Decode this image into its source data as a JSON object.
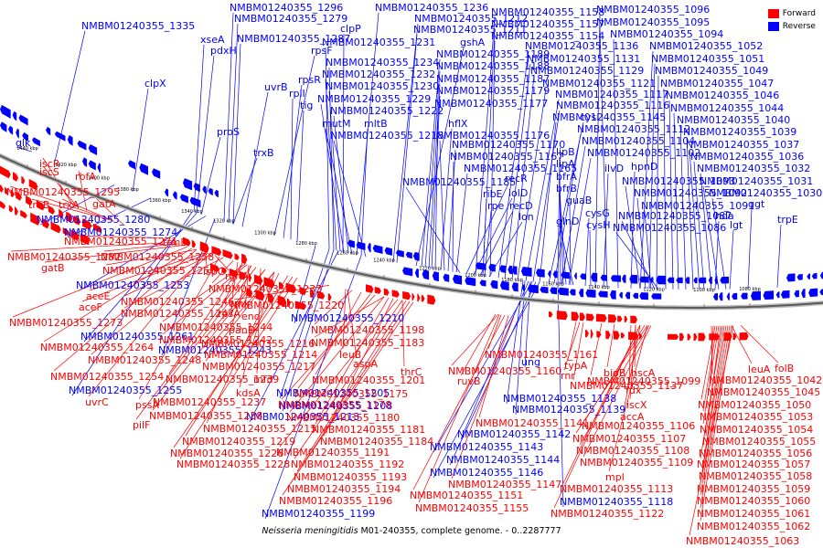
{
  "legend": {
    "forward_label": "Forward",
    "reverse_label": "Reverse",
    "forward_color": "#ff0000",
    "reverse_color": "#0000ff"
  },
  "caption": {
    "organism": "Neisseria meningitidis",
    "rest": " M01-240355, complete genome. - 0..2287777"
  },
  "ticks": [
    "1440 kbp",
    "1420 kbp",
    "1400 kbp",
    "1380 kbp",
    "1360 kbp",
    "1340 kbp",
    "1320 kbp",
    "1300 kbp",
    "1280 kbp",
    "1260 kbp",
    "1240 kbp",
    "1220 kbp",
    "1200 kbp",
    "1180 kbp",
    "1160 kbp",
    "1140 kbp",
    "1120 kbp",
    "1100 kbp",
    "1080 kbp"
  ],
  "reverse_genes": [
    "NMBM01240355_1335",
    "glk",
    "clpX",
    "pdxH",
    "xseA",
    "NMBM01240355_1296",
    "NMBM01240355_1279",
    "NMBM01240355_1287",
    "uvrB",
    "rpsF",
    "rpsR",
    "rplI",
    "tig",
    "proS",
    "trxB",
    "NMBM01240355_1236",
    "clpP",
    "NMBM01240355_1231",
    "NMBM01240355_1234",
    "NMBM01240355_1232",
    "NMBM01240355_1230",
    "NMBM01240355_1229",
    "NMBM01240355_1222",
    "mutM",
    "mltB",
    "NMBM01240355_1218",
    "NMBM01240355_1212",
    "NMBM01240355_1211",
    "gshA",
    "NMBM01240355_1189",
    "NMBM01240355_1188",
    "NMBM01240355_1187",
    "NMBM01240355_1179",
    "NMBM01240355_1177",
    "hflX",
    "NMBM01240355_1176",
    "NMBM01240355_1170",
    "NMBM01240355_1167",
    "NMBM01240355_1165",
    "NMBM01240355_1185",
    "recR",
    "lolD",
    "recD",
    "lon",
    "rpe",
    "ribE",
    "NMBM01240355_1158",
    "NMBM01240355_1157",
    "NMBM01240355_1154",
    "NMBM01240355_1136",
    "NMBM01240355_1131",
    "NMBM01240355_1129",
    "NMBM01240355_1121",
    "NMBM01240355_1117",
    "NMBM01240355_1116",
    "NMBM01240355_1145",
    "cysI",
    "NMBM01240355_1112",
    "NMBM01240355_1104",
    "NMBM01240355_1102",
    "lipB",
    "lipA",
    "bfrA",
    "bfrB",
    "guaB",
    "glnD",
    "cysG",
    "cysH",
    "ilvD",
    "hpnD",
    "NMBM01240355_1096",
    "NMBM01240355_1095",
    "NMBM01240355_1094",
    "NMBM01240355_1052",
    "NMBM01240355_1051",
    "NMBM01240355_1049",
    "NMBM01240355_1047",
    "NMBM01240355_1046",
    "NMBM01240355_1044",
    "NMBM01240355_1040",
    "NMBM01240355_1039",
    "NMBM01240355_1037",
    "NMBM01240355_1036",
    "NMBM01240355_1032",
    "NMBM01240355_1031",
    "NMBM01240355_1030",
    "NMBM01240355_1093",
    "NMBM01240355_1092",
    "NMBM01240355_1091",
    "NMBM01240355_1087",
    "NMBM01240355_1086",
    "hda",
    "lgt",
    "ggt",
    "trpE",
    "NMBM01240355_1280",
    "NMBM01240355_1274",
    "NMBM01240355_1253",
    "NMBM01240355_1261",
    "NMBM01240355_1243",
    "NMBM01240355_1255",
    "NMBM01240355_1210",
    "NMBM01240355_1205",
    "NMBM01240355_1208",
    "NMBM01240355_1213",
    "NMBM01240355_1199",
    "ung",
    "NMBM01240355_1138",
    "NMBM01240355_1139",
    "NMBM01240355_1142",
    "NMBM01240355_1143",
    "NMBM01240355_1144",
    "NMBM01240355_1146",
    "NMBM01240355_1118"
  ],
  "forward_genes": [
    "iscR",
    "iscS",
    "rbfA",
    "NMBM01240355_1295",
    "truB",
    "trxA",
    "gatA",
    "NMBM01240355_1271",
    "trmB",
    "NMBM01240355_1282",
    "NMBM01240355_1258",
    "gatB",
    "NMBM01240355_1256",
    "ispG",
    "rghA",
    "aceE",
    "aceF",
    "NMBM01240355_1246",
    "NMBM01240355_1233",
    "cmk",
    "NMBM01240355_1247",
    "rpsA",
    "NMBM01240355_1273",
    "eno",
    "NMBM01240355_1244",
    "panD",
    "NMBM01240355_1220",
    "NMBM01240355_1264",
    "NMBM01240355_1242",
    "NMBM01240355_1216",
    "NMBM01240355_1198",
    "NMBM01240355_1248",
    "NMBM01240355_1214",
    "leuB",
    "NMBM01240355_1183",
    "NMBM01240355_1217",
    "aspA",
    "NMBM01240355_1254",
    "NMBM01240355_1239",
    "mfd",
    "NMBM01240355_1201",
    "thrC",
    "kdsA",
    "NMBM01240355_1175",
    "NMBM01240355_1178",
    "uvrC",
    "pssA",
    "NMBM01240355_1237",
    "NMBM01240355_1238",
    "pilF",
    "NMBM01240355_1180",
    "NMBM01240355_1215",
    "NMBM01240355_1181",
    "NMBM01240355_1219",
    "NMBM01240355_1184",
    "NMBM01240355_1226",
    "NMBM01240355_1191",
    "NMBM01240355_1228",
    "NMBM01240355_1192",
    "NMBM01240355_1193",
    "NMBM01240355_1194",
    "NMBM01240355_1196",
    "NMBM01240355_1161",
    "NMBM01240355_1160",
    "ruvB",
    "NMBM01240355_1141",
    "NMBM01240355_1147",
    "NMBM01240355_1151",
    "NMBM01240355_1155",
    "typA",
    "rnr",
    "NMBM01240355_1137",
    "bioB",
    "hscA",
    "NMBM01240355_1099",
    "fdx",
    "iscX",
    "accA",
    "NMBM01240355_1106",
    "NMBM01240355_1107",
    "NMBM01240355_1108",
    "NMBM01240355_1109",
    "mpl",
    "NMBM01240355_1113",
    "NMBM01240355_1122",
    "leuA",
    "folB",
    "NMBM01240355_1042",
    "NMBM01240355_1045",
    "NMBM01240355_1050",
    "NMBM01240355_1053",
    "NMBM01240355_1054",
    "NMBM01240355_1055",
    "NMBM01240355_1056",
    "NMBM01240355_1057",
    "NMBM01240355_1058",
    "NMBM01240355_1059",
    "NMBM01240355_1060",
    "NMBM01240355_1061",
    "NMBM01240355_1062",
    "NMBM01240355_1063"
  ]
}
